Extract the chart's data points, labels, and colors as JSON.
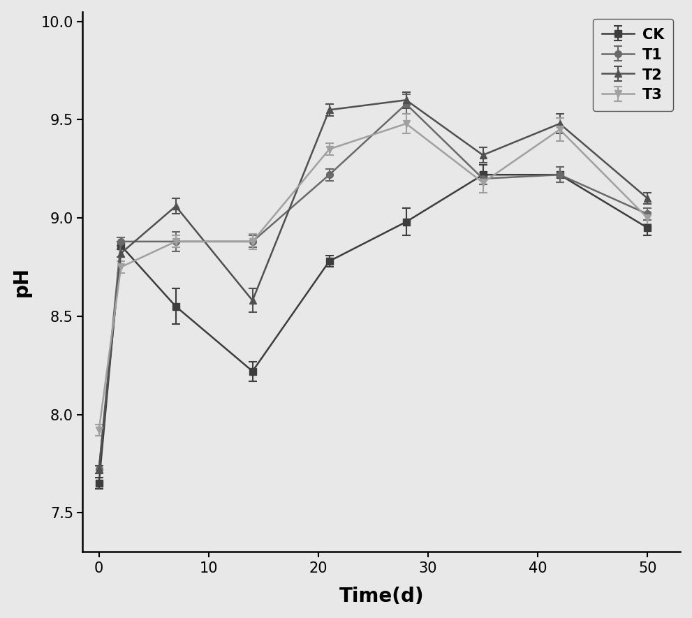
{
  "x": [
    0,
    2,
    7,
    14,
    21,
    28,
    35,
    42,
    50
  ],
  "CK": {
    "y": [
      7.65,
      8.86,
      8.55,
      8.22,
      8.78,
      8.98,
      9.22,
      9.22,
      8.95
    ],
    "yerr": [
      0.03,
      0.02,
      0.09,
      0.05,
      0.03,
      0.07,
      0.05,
      0.04,
      0.04
    ],
    "color": "#3d3d3d",
    "marker": "s",
    "label": "CK",
    "markersize": 7
  },
  "T1": {
    "y": [
      7.72,
      8.88,
      8.88,
      8.88,
      9.22,
      9.58,
      9.2,
      9.22,
      9.02
    ],
    "yerr": [
      0.02,
      0.02,
      0.05,
      0.03,
      0.03,
      0.05,
      0.03,
      0.04,
      0.03
    ],
    "color": "#696969",
    "marker": "o",
    "label": "T1",
    "markersize": 7
  },
  "T2": {
    "y": [
      7.72,
      8.82,
      9.06,
      8.58,
      9.55,
      9.6,
      9.32,
      9.48,
      9.1
    ],
    "yerr": [
      0.02,
      0.02,
      0.04,
      0.06,
      0.03,
      0.04,
      0.04,
      0.05,
      0.03
    ],
    "color": "#505050",
    "marker": "^",
    "label": "T2",
    "markersize": 7
  },
  "T3": {
    "y": [
      7.92,
      8.75,
      8.88,
      8.88,
      9.35,
      9.48,
      9.18,
      9.45,
      9.0
    ],
    "yerr": [
      0.03,
      0.03,
      0.03,
      0.04,
      0.03,
      0.05,
      0.05,
      0.06,
      0.03
    ],
    "color": "#a0a0a0",
    "marker": "v",
    "label": "T3",
    "markersize": 7
  },
  "xlabel": "Time(d)",
  "ylabel": "pH",
  "ylim": [
    7.3,
    10.05
  ],
  "xlim": [
    -1.5,
    53
  ],
  "yticks": [
    7.5,
    8.0,
    8.5,
    9.0,
    9.5,
    10.0
  ],
  "xticks": [
    0,
    10,
    20,
    30,
    40,
    50
  ],
  "figsize": [
    9.91,
    8.85
  ],
  "dpi": 100,
  "bg_color": "#e8e8e8",
  "plot_bg_color": "#e8e8e8"
}
